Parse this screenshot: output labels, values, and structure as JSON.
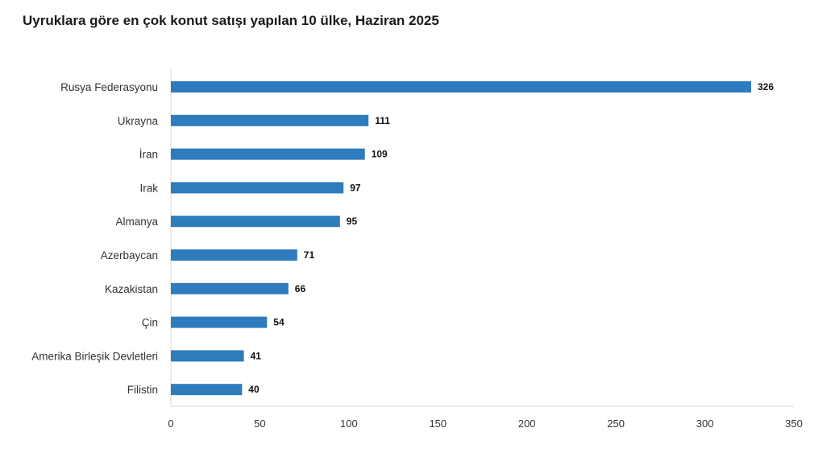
{
  "chart_data": {
    "type": "bar",
    "orientation": "horizontal",
    "title": "Uyruklara göre en çok konut satışı yapılan 10 ülke, Haziran 2025",
    "categories": [
      "Rusya Federasyonu",
      "Ukrayna",
      "İran",
      "Irak",
      "Almanya",
      "Azerbaycan",
      "Kazakistan",
      "Çin",
      "Amerika Birleşik Devletleri",
      "Filistin"
    ],
    "values": [
      326,
      111,
      109,
      97,
      95,
      71,
      66,
      54,
      41,
      40
    ],
    "xlim": [
      0,
      350
    ],
    "xticks": [
      "0",
      "50",
      "100",
      "150",
      "200",
      "250",
      "300",
      "350"
    ],
    "xlabel": "",
    "ylabel": "",
    "grid": false,
    "legend": "none",
    "bar_color": "#2e7bbd"
  }
}
